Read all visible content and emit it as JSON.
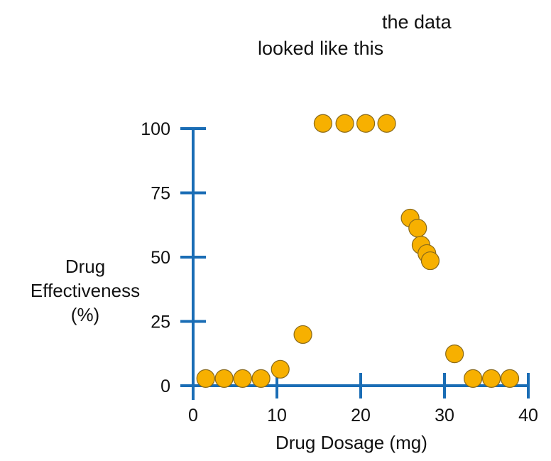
{
  "annotation": {
    "line1": "the data",
    "line2": "looked like this"
  },
  "colors": {
    "axis": "#1a6db5",
    "point_fill": "#f7b000",
    "point_stroke": "#8a6a1a"
  },
  "chart_data": {
    "type": "scatter",
    "title": "",
    "xlabel": "Drug Dosage (mg)",
    "ylabel_lines": [
      "Drug",
      "Effectiveness",
      "(%)"
    ],
    "xlim": [
      0,
      40
    ],
    "ylim": [
      0,
      100
    ],
    "xticks": [
      0,
      10,
      20,
      30,
      40
    ],
    "yticks": [
      0,
      25,
      50,
      75,
      100
    ],
    "grid": false,
    "series": [
      {
        "name": "data",
        "points": [
          {
            "x": 1.5,
            "y": 2.8
          },
          {
            "x": 3.7,
            "y": 2.8
          },
          {
            "x": 5.9,
            "y": 2.8
          },
          {
            "x": 8.1,
            "y": 2.8
          },
          {
            "x": 10.4,
            "y": 6.4
          },
          {
            "x": 13.1,
            "y": 19.9
          },
          {
            "x": 15.5,
            "y": 102
          },
          {
            "x": 18.1,
            "y": 102
          },
          {
            "x": 20.6,
            "y": 102
          },
          {
            "x": 23.1,
            "y": 102
          },
          {
            "x": 25.9,
            "y": 65.2
          },
          {
            "x": 26.8,
            "y": 61.3
          },
          {
            "x": 27.2,
            "y": 54.7
          },
          {
            "x": 27.9,
            "y": 51.4
          },
          {
            "x": 28.3,
            "y": 48.6
          },
          {
            "x": 31.2,
            "y": 12.4
          },
          {
            "x": 33.4,
            "y": 2.8
          },
          {
            "x": 35.6,
            "y": 2.8
          },
          {
            "x": 37.8,
            "y": 2.8
          }
        ]
      }
    ]
  }
}
